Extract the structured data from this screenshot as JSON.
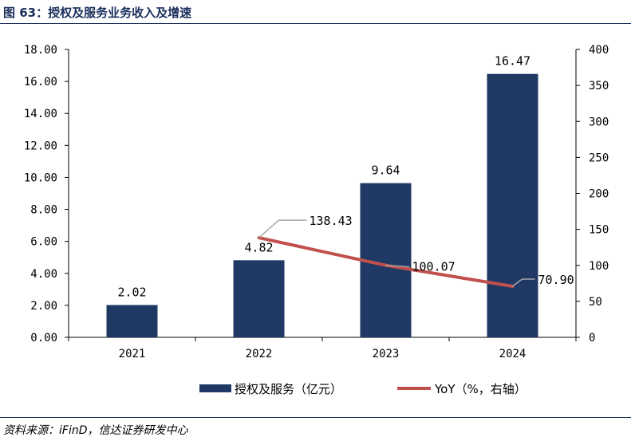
{
  "figure": {
    "title": "图 63：授权及服务业务收入及增速",
    "source": "资料来源：iFinD，信达证券研发中心"
  },
  "colors": {
    "bar": "#1f3864",
    "line": "#c0504d",
    "title": "#1a2e5c",
    "leader": "#a6a6a6"
  },
  "chart_data": {
    "type": "bar",
    "categories": [
      "2021",
      "2022",
      "2023",
      "2024"
    ],
    "series": [
      {
        "name": "授权及服务（亿元）",
        "type": "bar",
        "axis": "left",
        "values": [
          2.02,
          4.82,
          9.64,
          16.47
        ],
        "labels": [
          "2.02",
          "4.82",
          "9.64",
          "16.47"
        ]
      },
      {
        "name": "YoY（%，右轴）",
        "type": "line",
        "axis": "right",
        "values": [
          null,
          138.43,
          100.07,
          70.9
        ],
        "labels": [
          "",
          "138.43",
          "100.07",
          "70.90"
        ]
      }
    ],
    "ylim": [
      0,
      18
    ],
    "yticks": [
      "0.00",
      "2.00",
      "4.00",
      "6.00",
      "8.00",
      "10.00",
      "12.00",
      "14.00",
      "16.00",
      "18.00"
    ],
    "y2lim": [
      0,
      400
    ],
    "y2ticks": [
      "0",
      "50",
      "100",
      "150",
      "200",
      "250",
      "300",
      "350",
      "400"
    ],
    "grid": false,
    "legend": "bottom"
  }
}
